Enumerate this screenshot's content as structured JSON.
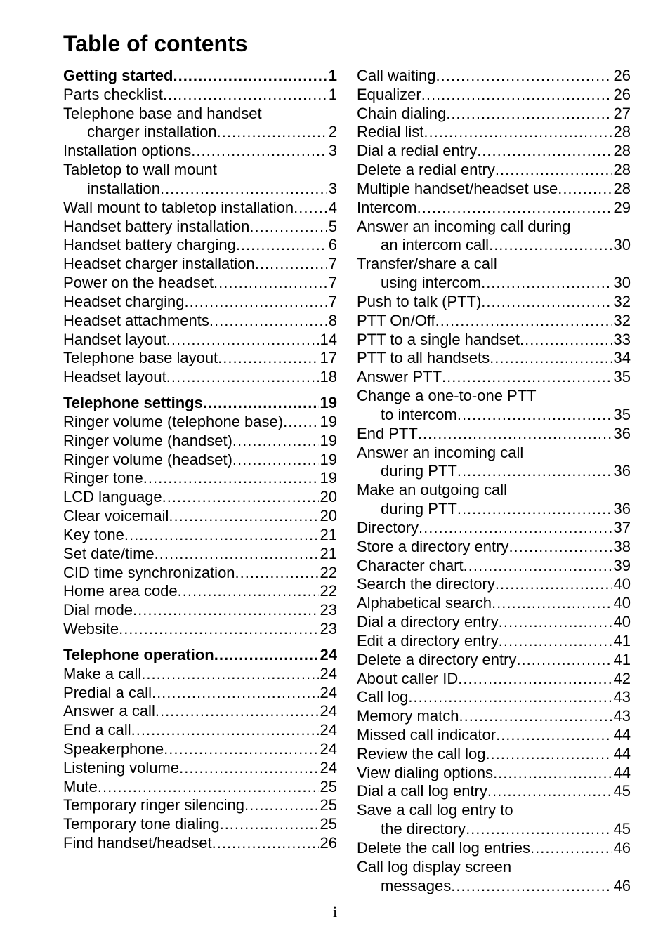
{
  "title": "Table of contents",
  "page_number": "i",
  "columns": [
    [
      {
        "label": "Getting started",
        "page": 1,
        "bold": true
      },
      {
        "label": "Parts checklist",
        "page": 1
      },
      {
        "label": "Telephone base and handset",
        "cont": true
      },
      {
        "label": "charger installation",
        "page": 2,
        "indent": true
      },
      {
        "label": "Installation options",
        "page": 3
      },
      {
        "label": "Tabletop to wall mount",
        "cont": true
      },
      {
        "label": "installation",
        "page": 3,
        "indent": true
      },
      {
        "label": "Wall mount to tabletop installation",
        "page": 4
      },
      {
        "label": "Handset battery installation",
        "page": 5
      },
      {
        "label": "Handset battery charging",
        "page": 6
      },
      {
        "label": "Headset charger installation",
        "page": 7
      },
      {
        "label": "Power on the headset",
        "page": 7
      },
      {
        "label": "Headset charging",
        "page": 7
      },
      {
        "label": "Headset attachments",
        "page": 8
      },
      {
        "label": "Handset layout",
        "page": 14
      },
      {
        "label": "Telephone base layout",
        "page": 17
      },
      {
        "label": "Headset layout",
        "page": 18
      },
      {
        "gap": true
      },
      {
        "label": "Telephone settings",
        "page": 19,
        "bold": true
      },
      {
        "label": "Ringer volume (telephone base)",
        "page": 19
      },
      {
        "label": "Ringer volume (handset)",
        "page": 19
      },
      {
        "label": "Ringer volume (headset)",
        "page": 19
      },
      {
        "label": "Ringer tone",
        "page": 19
      },
      {
        "label": "LCD language",
        "page": 20
      },
      {
        "label": "Clear voicemail",
        "page": 20
      },
      {
        "label": "Key tone",
        "page": 21
      },
      {
        "label": "Set date/time",
        "page": 21
      },
      {
        "label": "CID time synchronization",
        "page": 22
      },
      {
        "label": "Home area code",
        "page": 22
      },
      {
        "label": "Dial mode",
        "page": 23
      },
      {
        "label": "Website",
        "page": 23
      },
      {
        "gap": true
      },
      {
        "label": "Telephone operation",
        "page": 24,
        "bold": true
      },
      {
        "label": "Make a call",
        "page": 24
      },
      {
        "label": "Predial a call",
        "page": 24
      },
      {
        "label": "Answer a call",
        "page": 24
      },
      {
        "label": "End a call",
        "page": 24
      },
      {
        "label": "Speakerphone",
        "page": 24
      },
      {
        "label": "Listening volume",
        "page": 24
      },
      {
        "label": "Mute",
        "page": 25
      },
      {
        "label": "Temporary ringer silencing",
        "page": 25
      },
      {
        "label": "Temporary tone dialing",
        "page": 25
      },
      {
        "label": "Find handset/headset",
        "page": 26
      }
    ],
    [
      {
        "label": "Call waiting",
        "page": 26
      },
      {
        "label": "Equalizer",
        "page": 26
      },
      {
        "label": "Chain dialing",
        "page": 27
      },
      {
        "label": "Redial list",
        "page": 28
      },
      {
        "label": "Dial a redial entry",
        "page": 28
      },
      {
        "label": "Delete a redial entry",
        "page": 28
      },
      {
        "label": "Multiple handset/headset use",
        "page": 28
      },
      {
        "label": "Intercom",
        "page": 29
      },
      {
        "label": "Answer an incoming call during",
        "cont": true
      },
      {
        "label": "an intercom call",
        "page": 30,
        "indent": true
      },
      {
        "label": "Transfer/share a call",
        "cont": true
      },
      {
        "label": "using intercom",
        "page": 30,
        "indent": true
      },
      {
        "label": "Push to talk (PTT)",
        "page": 32
      },
      {
        "label": "PTT On/Off",
        "page": 32
      },
      {
        "label": "PTT to a single handset",
        "page": 33
      },
      {
        "label": "PTT to all handsets",
        "page": 34
      },
      {
        "label": "Answer PTT",
        "page": 35
      },
      {
        "label": "Change a one-to-one PTT",
        "cont": true
      },
      {
        "label": "to intercom",
        "page": 35,
        "indent": true
      },
      {
        "label": "End PTT",
        "page": 36
      },
      {
        "label": "Answer an incoming call",
        "cont": true
      },
      {
        "label": "during PTT",
        "page": 36,
        "indent": true
      },
      {
        "label": "Make an outgoing call",
        "cont": true
      },
      {
        "label": "during PTT",
        "page": 36,
        "indent": true
      },
      {
        "label": "Directory",
        "page": 37
      },
      {
        "label": "Store a directory entry",
        "page": 38
      },
      {
        "label": "Character chart",
        "page": 39
      },
      {
        "label": "Search the directory",
        "page": 40
      },
      {
        "label": "Alphabetical search",
        "page": 40
      },
      {
        "label": "Dial a directory entry",
        "page": 40
      },
      {
        "label": "Edit a directory entry",
        "page": 41
      },
      {
        "label": "Delete a directory entry",
        "page": 41
      },
      {
        "label": "About caller ID",
        "page": 42
      },
      {
        "label": "Call log",
        "page": 43
      },
      {
        "label": "Memory match",
        "page": 43
      },
      {
        "label": "Missed call indicator",
        "page": 44
      },
      {
        "label": "Review the call log",
        "page": 44
      },
      {
        "label": "View dialing options",
        "page": 44
      },
      {
        "label": "Dial a call log entry",
        "page": 45
      },
      {
        "label": "Save a call log entry to",
        "cont": true
      },
      {
        "label": "the directory",
        "page": 45,
        "indent": true
      },
      {
        "label": "Delete the call log entries",
        "page": 46
      },
      {
        "label": "Call log display screen",
        "cont": true
      },
      {
        "label": "messages",
        "page": 46,
        "indent": true
      }
    ]
  ]
}
